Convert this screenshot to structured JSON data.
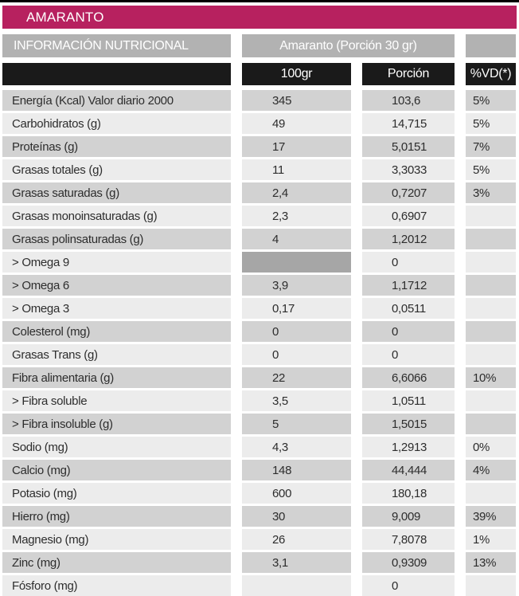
{
  "title": "AMARANTO",
  "header": {
    "info_label": "INFORMACIÓN NUTRICIONAL",
    "portion_label": "Amaranto (Porción 30 gr)",
    "columns": [
      "100gr",
      "Porción",
      "%VD(*)"
    ]
  },
  "colors": {
    "magenta": "#b7215f",
    "header_gray": "#b2b2b2",
    "header_black": "#1a1a1a",
    "stripe_dark": "#d2d2d2",
    "stripe_light": "#ececec",
    "highlight_cell_gray": "#a6a6a6",
    "text": "#2d2d2d"
  },
  "rows": [
    {
      "label": "Energía (Kcal) Valor diario 2000",
      "per100": "345",
      "porcion": "103,6",
      "vd": "5%",
      "highlight_per100": false
    },
    {
      "label": "Carbohidratos (g)",
      "per100": "49",
      "porcion": "14,715",
      "vd": "5%",
      "highlight_per100": false
    },
    {
      "label": "Proteínas (g)",
      "per100": "17",
      "porcion": "5,0151",
      "vd": "7%",
      "highlight_per100": false
    },
    {
      "label": "Grasas totales (g)",
      "per100": "11",
      "porcion": "3,3033",
      "vd": "5%",
      "highlight_per100": false
    },
    {
      "label": "Grasas saturadas (g)",
      "per100": "2,4",
      "porcion": "0,7207",
      "vd": "3%",
      "highlight_per100": false
    },
    {
      "label": "Grasas monoinsaturadas (g)",
      "per100": "2,3",
      "porcion": "0,6907",
      "vd": "",
      "highlight_per100": false
    },
    {
      "label": "Grasas polinsaturadas (g)",
      "per100": "4",
      "porcion": "1,2012",
      "vd": "",
      "highlight_per100": false
    },
    {
      "label": "> Omega 9",
      "per100": "",
      "porcion": "0",
      "vd": "",
      "highlight_per100": true
    },
    {
      "label": "> Omega 6",
      "per100": "3,9",
      "porcion": "1,1712",
      "vd": "",
      "highlight_per100": false
    },
    {
      "label": "> Omega 3",
      "per100": "0,17",
      "porcion": "0,0511",
      "vd": "",
      "highlight_per100": false
    },
    {
      "label": "Colesterol (mg)",
      "per100": "0",
      "porcion": "0",
      "vd": "",
      "highlight_per100": false
    },
    {
      "label": "Grasas Trans (g)",
      "per100": "0",
      "porcion": "0",
      "vd": "",
      "highlight_per100": false
    },
    {
      "label": "Fibra alimentaria (g)",
      "per100": "22",
      "porcion": "6,6066",
      "vd": "10%",
      "highlight_per100": false
    },
    {
      "label": "> Fibra soluble",
      "per100": "3,5",
      "porcion": "1,0511",
      "vd": "",
      "highlight_per100": false
    },
    {
      "label": "> Fibra insoluble (g)",
      "per100": "5",
      "porcion": "1,5015",
      "vd": "",
      "highlight_per100": false
    },
    {
      "label": "Sodio (mg)",
      "per100": "4,3",
      "porcion": "1,2913",
      "vd": "0%",
      "highlight_per100": false
    },
    {
      "label": "Calcio (mg)",
      "per100": "148",
      "porcion": "44,444",
      "vd": "4%",
      "highlight_per100": false
    },
    {
      "label": "Potasio (mg)",
      "per100": "600",
      "porcion": "180,18",
      "vd": "",
      "highlight_per100": false
    },
    {
      "label": "Hierro (mg)",
      "per100": "30",
      "porcion": "9,009",
      "vd": "39%",
      "highlight_per100": false
    },
    {
      "label": "Magnesio (mg)",
      "per100": "26",
      "porcion": "7,8078",
      "vd": "1%",
      "highlight_per100": false
    },
    {
      "label": "Zinc (mg)",
      "per100": "3,1",
      "porcion": "0,9309",
      "vd": "13%",
      "highlight_per100": false
    },
    {
      "label": "Fósforo (mg)",
      "per100": "",
      "porcion": "0",
      "vd": "",
      "highlight_per100": false
    }
  ]
}
